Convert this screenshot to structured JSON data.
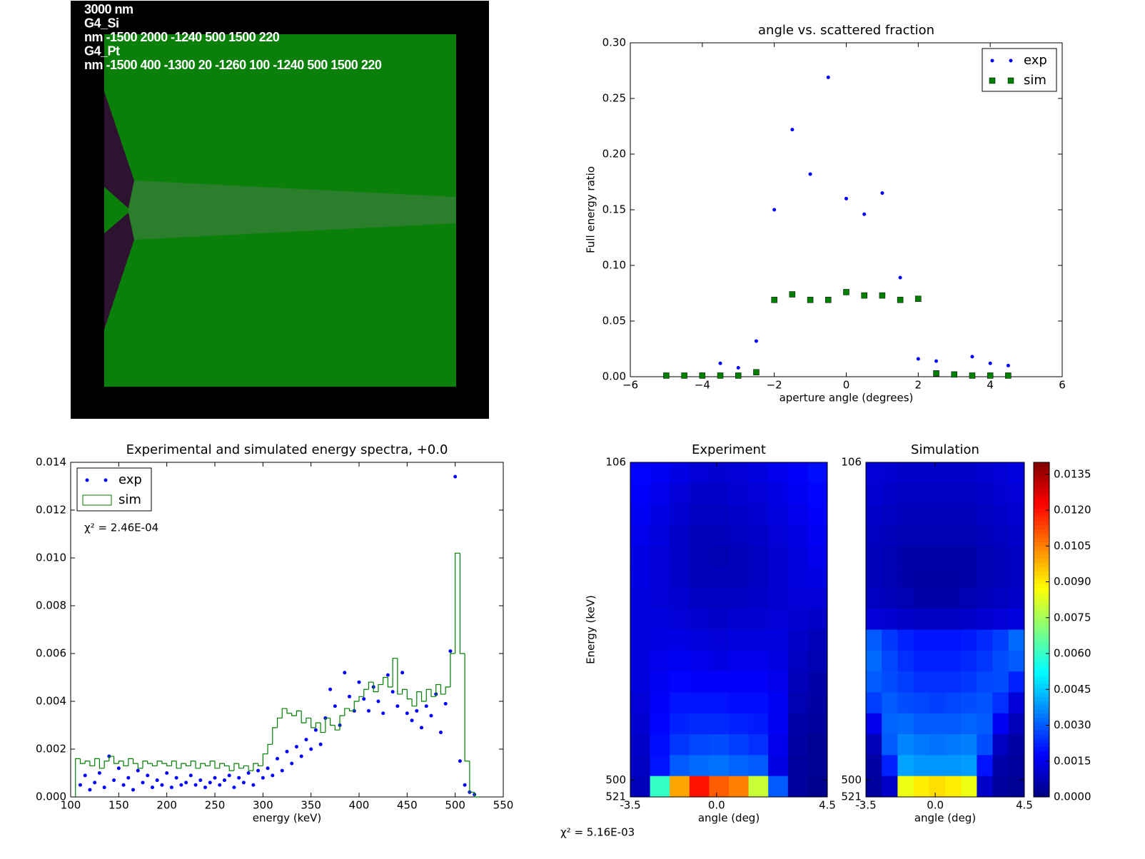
{
  "chart_data": [
    {
      "type": "image",
      "labels": [
        "3000 nm",
        "G4_Si",
        "nm -1500 2000 -1240 500 1500 220",
        "G4_Pt",
        "nm -1500 400 -1300 20 -1260 100 -1240 500 1500 220"
      ]
    },
    {
      "type": "scatter",
      "title": "angle vs. scattered fraction",
      "xlabel": "aperture angle (degrees)",
      "ylabel": "Full energy ratio",
      "x": [
        -5,
        -4.5,
        -4,
        -3.5,
        -3,
        -2.5,
        -2,
        -1.5,
        -1,
        -0.5,
        0,
        0.5,
        1,
        1.5,
        2,
        2.5,
        3,
        3.5,
        4,
        4.5
      ],
      "series": [
        {
          "name": "exp",
          "color": "#0000ff",
          "marker": "dot",
          "values": [
            0.001,
            0.001,
            0.001,
            0.012,
            0.008,
            0.032,
            0.15,
            0.222,
            0.182,
            0.269,
            0.16,
            0.146,
            0.165,
            0.089,
            0.016,
            0.014,
            0.003,
            0.018,
            0.012,
            0.01
          ]
        },
        {
          "name": "sim",
          "color": "#007f00",
          "marker": "square",
          "values": [
            0.001,
            0.001,
            0.001,
            0.001,
            0.001,
            0.004,
            0.069,
            0.074,
            0.069,
            0.069,
            0.076,
            0.073,
            0.073,
            0.069,
            0.07,
            0.003,
            0.002,
            0.001,
            0.001,
            0.001
          ]
        }
      ],
      "xlim": [
        -6,
        6
      ],
      "xticks": [
        {
          "value": -6,
          "label": "−6"
        },
        {
          "value": -4,
          "label": "−4"
        },
        {
          "value": -2,
          "label": "−2"
        },
        0,
        2,
        4,
        6
      ],
      "ylim": [
        0,
        0.3
      ],
      "yticks": [
        {
          "value": 0,
          "label": "0.00"
        },
        0.05,
        {
          "value": 0.1,
          "label": "0.10"
        },
        0.15,
        {
          "value": 0.2,
          "label": "0.20"
        },
        0.25,
        {
          "value": 0.3,
          "label": "0.30"
        }
      ],
      "legend": "upper right"
    },
    {
      "type": "histogram",
      "title": "Experimental and simulated energy spectra, +0.0",
      "xlabel": "energy (keV)",
      "annotation": "χ² = 2.46E-04",
      "series": [
        {
          "name": "exp",
          "color": "#0000ff",
          "marker": "dot",
          "x": [
            110,
            115,
            120,
            125,
            130,
            135,
            140,
            145,
            150,
            155,
            160,
            165,
            170,
            175,
            180,
            185,
            190,
            195,
            200,
            205,
            210,
            215,
            220,
            225,
            230,
            235,
            240,
            245,
            250,
            255,
            260,
            265,
            270,
            275,
            280,
            285,
            290,
            295,
            300,
            305,
            310,
            315,
            320,
            325,
            330,
            335,
            340,
            345,
            350,
            355,
            360,
            365,
            370,
            375,
            380,
            385,
            390,
            395,
            400,
            405,
            410,
            415,
            420,
            425,
            430,
            435,
            440,
            445,
            450,
            455,
            460,
            465,
            470,
            475,
            480,
            485,
            490,
            495,
            500,
            505,
            510,
            515,
            520
          ],
          "values": [
            0.0005,
            0.0009,
            0.0003,
            0.0006,
            0.001,
            0.0004,
            0.0017,
            0.0007,
            0.0012,
            0.0005,
            0.0008,
            0.0003,
            0.0011,
            0.0006,
            0.0009,
            0.0004,
            0.0007,
            0.0005,
            0.001,
            0.0004,
            0.0008,
            0.0005,
            0.0006,
            0.0009,
            0.0005,
            0.0007,
            0.0004,
            0.0006,
            0.0008,
            0.0005,
            0.0007,
            0.0009,
            0.0004,
            0.0008,
            0.0006,
            0.001,
            0.0005,
            0.0011,
            0.0008,
            0.0012,
            0.0009,
            0.0016,
            0.0011,
            0.0019,
            0.0014,
            0.0021,
            0.0017,
            0.0024,
            0.002,
            0.0028,
            0.0022,
            0.0033,
            0.0045,
            0.0038,
            0.003,
            0.0052,
            0.0042,
            0.0036,
            0.0048,
            0.0041,
            0.0036,
            0.0046,
            0.004,
            0.0035,
            0.0051,
            0.0044,
            0.0038,
            0.0052,
            0.0035,
            0.0032,
            0.0036,
            0.0029,
            0.0038,
            0.0034,
            0.0043,
            0.0027,
            0.0039,
            0.0061,
            0.0134,
            0.0015,
            0.0005,
            0.0002,
            0.0001
          ]
        },
        {
          "name": "sim",
          "color": "#007f00",
          "marker": "step",
          "bins": [
            105,
            110,
            115,
            120,
            125,
            130,
            135,
            140,
            145,
            150,
            155,
            160,
            165,
            170,
            175,
            180,
            185,
            190,
            195,
            200,
            205,
            210,
            215,
            220,
            225,
            230,
            235,
            240,
            245,
            250,
            255,
            260,
            265,
            270,
            275,
            280,
            285,
            290,
            295,
            300,
            305,
            310,
            315,
            320,
            325,
            330,
            335,
            340,
            345,
            350,
            355,
            360,
            365,
            370,
            375,
            380,
            385,
            390,
            395,
            400,
            405,
            410,
            415,
            420,
            425,
            430,
            435,
            440,
            445,
            450,
            455,
            460,
            465,
            470,
            475,
            480,
            485,
            490,
            495,
            500,
            505,
            510,
            515,
            520,
            525
          ],
          "values": [
            0.0016,
            0.0014,
            0.0015,
            0.0013,
            0.0016,
            0.0012,
            0.0015,
            0.0017,
            0.0014,
            0.0015,
            0.0013,
            0.0016,
            0.0014,
            0.0012,
            0.0015,
            0.0014,
            0.0013,
            0.0015,
            0.0014,
            0.0013,
            0.0015,
            0.0012,
            0.0014,
            0.0013,
            0.0015,
            0.0012,
            0.0014,
            0.0013,
            0.0015,
            0.0012,
            0.0014,
            0.0013,
            0.0011,
            0.0014,
            0.0012,
            0.0013,
            0.0011,
            0.0014,
            0.0013,
            0.0018,
            0.0022,
            0.0029,
            0.0033,
            0.0037,
            0.0035,
            0.0034,
            0.0036,
            0.0031,
            0.0033,
            0.0029,
            0.0031,
            0.0027,
            0.0033,
            0.003,
            0.0028,
            0.0034,
            0.0037,
            0.0036,
            0.004,
            0.0042,
            0.0045,
            0.0048,
            0.0044,
            0.0047,
            0.005,
            0.0046,
            0.0058,
            0.0043,
            0.0045,
            0.0041,
            0.0038,
            0.0044,
            0.004,
            0.0045,
            0.0042,
            0.0047,
            0.0043,
            0.0046,
            0.006,
            0.0102,
            0.006,
            0.0015,
            0.0002,
            0.0
          ]
        }
      ],
      "xlim": [
        100,
        550
      ],
      "xticks": [
        100,
        150,
        200,
        250,
        300,
        350,
        400,
        450,
        500,
        550
      ],
      "ylim": [
        0,
        0.014
      ],
      "yticks": [
        {
          "value": 0,
          "label": "0.000"
        },
        {
          "value": 0.002,
          "label": "0.002"
        },
        {
          "value": 0.004,
          "label": "0.004"
        },
        {
          "value": 0.006,
          "label": "0.006"
        },
        {
          "value": 0.008,
          "label": "0.008"
        },
        {
          "value": 0.01,
          "label": "0.010"
        },
        {
          "value": 0.012,
          "label": "0.012"
        },
        {
          "value": 0.014,
          "label": "0.014"
        }
      ],
      "legend": "upper left"
    },
    {
      "type": "heatmap",
      "title": "Experiment",
      "xlabel": "angle (deg)",
      "ylabel": "Energy (keV)",
      "xlim": [
        -3.5,
        4.5
      ],
      "xticks": [
        -3.5,
        {
          "value": 0,
          "label": "0.0"
        },
        4.5
      ],
      "ylim": [
        521,
        106
      ],
      "yticks": [
        106,
        500,
        521
      ],
      "clim": [
        0,
        0.014
      ],
      "values": [
        [
          0.0018,
          0.0016,
          0.0014,
          0.0012,
          0.0011,
          0.0012,
          0.0013,
          0.0015,
          0.0017,
          0.0019
        ],
        [
          0.0017,
          0.0015,
          0.0012,
          0.001,
          0.001,
          0.0011,
          0.0012,
          0.0014,
          0.0016,
          0.0018
        ],
        [
          0.0016,
          0.0014,
          0.0011,
          0.0009,
          0.0009,
          0.001,
          0.0011,
          0.0013,
          0.0015,
          0.0017
        ],
        [
          0.0015,
          0.0013,
          0.001,
          0.0008,
          0.0008,
          0.0009,
          0.001,
          0.0012,
          0.0014,
          0.0016
        ],
        [
          0.0014,
          0.0012,
          0.001,
          0.0008,
          0.0007,
          0.0008,
          0.0009,
          0.0011,
          0.0013,
          0.0015
        ],
        [
          0.0014,
          0.0012,
          0.001,
          0.0008,
          0.0008,
          0.0008,
          0.0009,
          0.0011,
          0.0013,
          0.0014
        ],
        [
          0.0013,
          0.0012,
          0.0011,
          0.0009,
          0.0009,
          0.0009,
          0.001,
          0.0011,
          0.0012,
          0.0012
        ],
        [
          0.0013,
          0.0013,
          0.0012,
          0.0011,
          0.001,
          0.0011,
          0.0011,
          0.0012,
          0.0011,
          0.001
        ],
        [
          0.0013,
          0.0014,
          0.0014,
          0.0013,
          0.0012,
          0.0013,
          0.0013,
          0.0013,
          0.001,
          0.0008
        ],
        [
          0.0013,
          0.0015,
          0.0016,
          0.0015,
          0.0014,
          0.0015,
          0.0015,
          0.0014,
          0.0009,
          0.0007
        ],
        [
          0.0013,
          0.0016,
          0.0018,
          0.0017,
          0.0017,
          0.0017,
          0.0017,
          0.0015,
          0.0008,
          0.0006
        ],
        [
          0.0012,
          0.0017,
          0.002,
          0.002,
          0.002,
          0.0019,
          0.0019,
          0.0016,
          0.0007,
          0.0005
        ],
        [
          0.0011,
          0.0018,
          0.0022,
          0.0023,
          0.0023,
          0.0022,
          0.0021,
          0.0016,
          0.0006,
          0.0004
        ],
        [
          0.001,
          0.0019,
          0.0025,
          0.0027,
          0.0028,
          0.0026,
          0.0024,
          0.0015,
          0.0005,
          0.0003
        ],
        [
          0.0009,
          0.002,
          0.003,
          0.0032,
          0.0033,
          0.0031,
          0.003,
          0.0014,
          0.0004,
          0.0003
        ],
        [
          0.0008,
          0.006,
          0.01,
          0.012,
          0.011,
          0.0105,
          0.008,
          0.003,
          0.0004,
          0.0002
        ]
      ]
    },
    {
      "type": "heatmap",
      "title": "Simulation",
      "xlabel": "angle (deg)",
      "annotation": "χ² = 5.16E-03",
      "xlim": [
        -3.5,
        4.5
      ],
      "xticks": [
        -3.5,
        {
          "value": 0,
          "label": "0.0"
        },
        4.5
      ],
      "ylim": [
        521,
        106
      ],
      "yticks": [
        106,
        500,
        521
      ],
      "clim": [
        0,
        0.014
      ],
      "cticks": [
        {
          "value": 0,
          "label": "0.0000"
        },
        {
          "value": 0.0015,
          "label": "0.0015"
        },
        {
          "value": 0.003,
          "label": "0.0030"
        },
        {
          "value": 0.0045,
          "label": "0.0045"
        },
        {
          "value": 0.006,
          "label": "0.0060"
        },
        {
          "value": 0.0075,
          "label": "0.0075"
        },
        {
          "value": 0.009,
          "label": "0.0090"
        },
        {
          "value": 0.0105,
          "label": "0.0105"
        },
        {
          "value": 0.012,
          "label": "0.0120"
        },
        {
          "value": 0.0135,
          "label": "0.0135"
        }
      ],
      "values": [
        [
          0.0012,
          0.0011,
          0.001,
          0.001,
          0.001,
          0.001,
          0.001,
          0.0011,
          0.0012,
          0.0013
        ],
        [
          0.0011,
          0.001,
          0.0009,
          0.0009,
          0.0009,
          0.0009,
          0.0009,
          0.001,
          0.0011,
          0.0012
        ],
        [
          0.001,
          0.0009,
          0.0008,
          0.0008,
          0.0008,
          0.0008,
          0.0008,
          0.0009,
          0.001,
          0.0011
        ],
        [
          0.0009,
          0.0008,
          0.0007,
          0.0007,
          0.0007,
          0.0007,
          0.0007,
          0.0008,
          0.0009,
          0.001
        ],
        [
          0.0008,
          0.0007,
          0.0006,
          0.0006,
          0.0006,
          0.0006,
          0.0006,
          0.0007,
          0.0008,
          0.0009
        ],
        [
          0.0008,
          0.0007,
          0.0006,
          0.0005,
          0.0005,
          0.0005,
          0.0006,
          0.0007,
          0.0008,
          0.0009
        ],
        [
          0.0009,
          0.0008,
          0.0007,
          0.0006,
          0.0006,
          0.0006,
          0.0007,
          0.0008,
          0.0009,
          0.001
        ],
        [
          0.0012,
          0.0011,
          0.001,
          0.0009,
          0.0009,
          0.0009,
          0.001,
          0.0011,
          0.0012,
          0.0013
        ],
        [
          0.003,
          0.0025,
          0.0022,
          0.002,
          0.002,
          0.002,
          0.0021,
          0.0023,
          0.0026,
          0.0032
        ],
        [
          0.0032,
          0.0027,
          0.0024,
          0.0022,
          0.0022,
          0.0022,
          0.0023,
          0.0025,
          0.0028,
          0.003
        ],
        [
          0.003,
          0.0028,
          0.0026,
          0.0024,
          0.0024,
          0.0024,
          0.0025,
          0.0027,
          0.0028,
          0.0022
        ],
        [
          0.0026,
          0.003,
          0.0028,
          0.0027,
          0.0026,
          0.0027,
          0.0028,
          0.0029,
          0.0024,
          0.0012
        ],
        [
          0.0015,
          0.0031,
          0.0032,
          0.003,
          0.003,
          0.003,
          0.0031,
          0.003,
          0.0016,
          0.0008
        ],
        [
          0.0008,
          0.003,
          0.0036,
          0.0034,
          0.0033,
          0.0034,
          0.0035,
          0.0028,
          0.0009,
          0.0005
        ],
        [
          0.0005,
          0.0022,
          0.004,
          0.0038,
          0.0038,
          0.0038,
          0.0039,
          0.002,
          0.0006,
          0.0004
        ],
        [
          0.0004,
          0.001,
          0.0085,
          0.009,
          0.0092,
          0.009,
          0.0085,
          0.001,
          0.0004,
          0.0003
        ]
      ]
    }
  ]
}
